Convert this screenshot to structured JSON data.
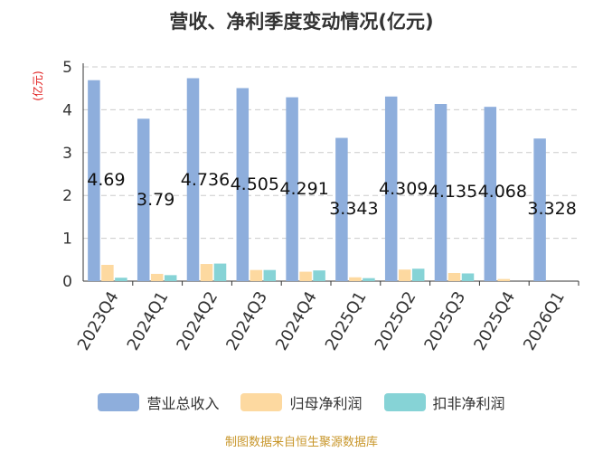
{
  "title": "营收、净利季度变动情况(亿元)",
  "footer": "制图数据来自恒生聚源数据库",
  "chart_data": {
    "type": "bar",
    "title": "营收、净利季度变动情况(亿元)",
    "ylabel": "(亿元)",
    "ylim": [
      0,
      5
    ],
    "yticks": [
      0,
      1,
      2,
      3,
      4,
      5
    ],
    "grid": true,
    "legend_position": "bottom",
    "categories": [
      "2023Q4",
      "2024Q1",
      "2024Q2",
      "2024Q3",
      "2024Q4",
      "2025Q1",
      "2025Q2",
      "2025Q3",
      "2025Q4",
      "2026Q1"
    ],
    "series": [
      {
        "name": "营业总收入",
        "color": "#8eaedc",
        "values": [
          4.69,
          3.79,
          4.736,
          4.505,
          4.291,
          3.343,
          4.309,
          4.135,
          4.068,
          3.328
        ],
        "labels": [
          "4.69",
          "3.79",
          "4.736",
          "4.505",
          "4.291",
          "3.343",
          "4.309",
          "4.135",
          "4.068",
          "3.328"
        ]
      },
      {
        "name": "归母净利润",
        "color": "#fdd9a0",
        "values": [
          0.38,
          0.17,
          0.4,
          0.26,
          0.22,
          0.09,
          0.27,
          0.19,
          0.05,
          0.0
        ]
      },
      {
        "name": "扣非净利润",
        "color": "#86d3d6",
        "values": [
          0.08,
          0.14,
          0.41,
          0.26,
          0.25,
          0.07,
          0.29,
          0.18,
          0.0,
          0.0
        ]
      }
    ]
  }
}
